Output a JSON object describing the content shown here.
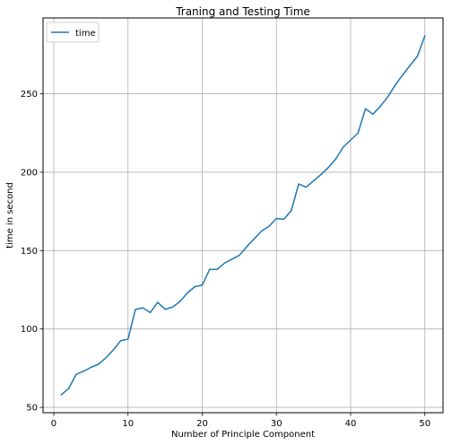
{
  "chart_data": {
    "type": "line",
    "title": "Traning and Testing Time",
    "xlabel": "Number of Principle Component",
    "ylabel": "time in second",
    "xlim": [
      -1.45,
      52.45
    ],
    "ylim": [
      46.6,
      298.4
    ],
    "xticks": [
      0,
      10,
      20,
      30,
      40,
      50
    ],
    "yticks": [
      50,
      100,
      150,
      200,
      250
    ],
    "grid": true,
    "legend_position": "top-left",
    "series": [
      {
        "name": "time",
        "color": "#1f77b4",
        "x": [
          1,
          2,
          3,
          4,
          5,
          6,
          7,
          8,
          9,
          10,
          11,
          12,
          13,
          14,
          15,
          16,
          17,
          18,
          19,
          20,
          21,
          22,
          23,
          24,
          25,
          26,
          27,
          28,
          29,
          30,
          31,
          32,
          33,
          34,
          35,
          36,
          37,
          38,
          39,
          40,
          41,
          42,
          43,
          44,
          45,
          46,
          47,
          48,
          49,
          50
        ],
        "y": [
          58,
          62,
          71,
          73,
          75.5,
          77.5,
          81.5,
          86.5,
          92.5,
          93.5,
          112.5,
          113.5,
          110.5,
          117,
          112.5,
          114,
          117.5,
          123,
          127,
          128,
          138,
          138,
          142,
          144.5,
          147,
          152.5,
          157.5,
          162.5,
          165.5,
          170.5,
          170,
          175.5,
          192.5,
          190.5,
          194.5,
          198.5,
          203,
          208.5,
          216,
          220.5,
          225,
          240.5,
          237,
          242,
          248,
          255.5,
          262,
          268,
          274,
          287
        ]
      }
    ]
  }
}
